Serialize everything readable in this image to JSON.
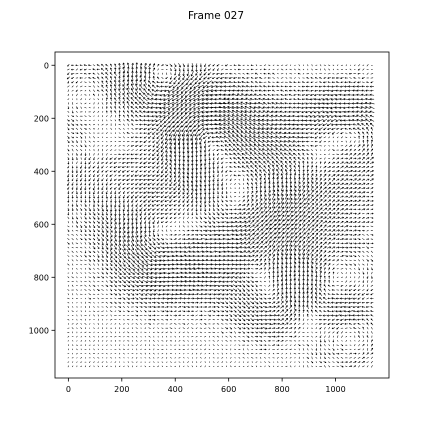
{
  "figure": {
    "title": "Frame 027"
  },
  "chart_data": {
    "type": "quiver",
    "title": "Frame 027",
    "xlabel": "",
    "ylabel": "",
    "xlim": [
      -50,
      1200
    ],
    "ylim": [
      1180,
      -50
    ],
    "y_axis_inverted": true,
    "grid": false,
    "legend": "none",
    "x_ticks": [
      0,
      200,
      400,
      600,
      800,
      1000
    ],
    "y_ticks": [
      0,
      200,
      400,
      600,
      800,
      1000
    ],
    "grid_spacing": 16,
    "field_extent": {
      "x": [
        0,
        1140
      ],
      "y": [
        0,
        1140
      ]
    },
    "arrow_color": "#000000",
    "background_color": "#ffffff"
  }
}
